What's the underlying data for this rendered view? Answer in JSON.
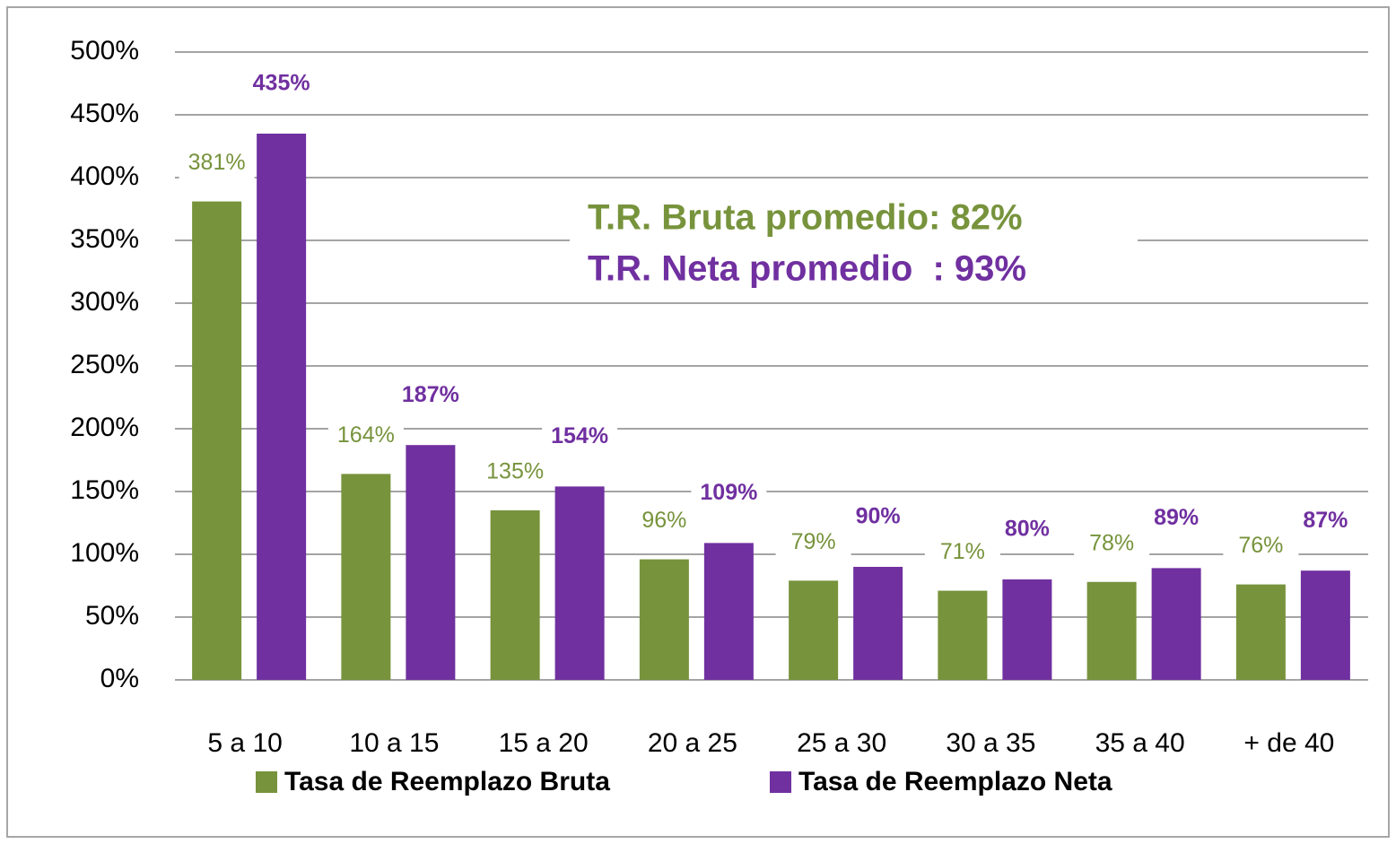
{
  "chart_data": {
    "type": "bar",
    "categories": [
      "5 a 10",
      "10 a 15",
      "15 a 20",
      "20 a 25",
      "25 a 30",
      "30 a 35",
      "35 a 40",
      "+ de 40"
    ],
    "series": [
      {
        "name": "Tasa de Reemplazo Bruta",
        "color": "#77933c",
        "values": [
          381,
          164,
          135,
          96,
          79,
          71,
          78,
          76
        ],
        "value_labels": [
          "381%",
          "164%",
          "135%",
          "96%",
          "79%",
          "71%",
          "78%",
          "76%"
        ]
      },
      {
        "name": "Tasa de Reemplazo Neta",
        "color": "#7030a0",
        "values": [
          435,
          187,
          154,
          109,
          90,
          80,
          89,
          87
        ],
        "value_labels": [
          "435%",
          "187%",
          "154%",
          "109%",
          "90%",
          "80%",
          "89%",
          "87%"
        ]
      }
    ],
    "ylim": [
      0,
      500
    ],
    "yticks": [
      {
        "value": 0,
        "label": "0%"
      },
      {
        "value": 50,
        "label": "50%"
      },
      {
        "value": 100,
        "label": "100%"
      },
      {
        "value": 150,
        "label": "150%"
      },
      {
        "value": 200,
        "label": "200%"
      },
      {
        "value": 250,
        "label": "250%"
      },
      {
        "value": 300,
        "label": "300%"
      },
      {
        "value": 350,
        "label": "350%"
      },
      {
        "value": 400,
        "label": "400%"
      },
      {
        "value": 450,
        "label": "450%"
      },
      {
        "value": 500,
        "label": "500%"
      }
    ],
    "grid": true,
    "legend": "bottom",
    "annotations": [
      {
        "text": "T.R. Bruta promedio: 82%",
        "color": "#77933c"
      },
      {
        "text": "T.R. Neta promedio  : 93%",
        "color": "#7030a0"
      }
    ]
  }
}
